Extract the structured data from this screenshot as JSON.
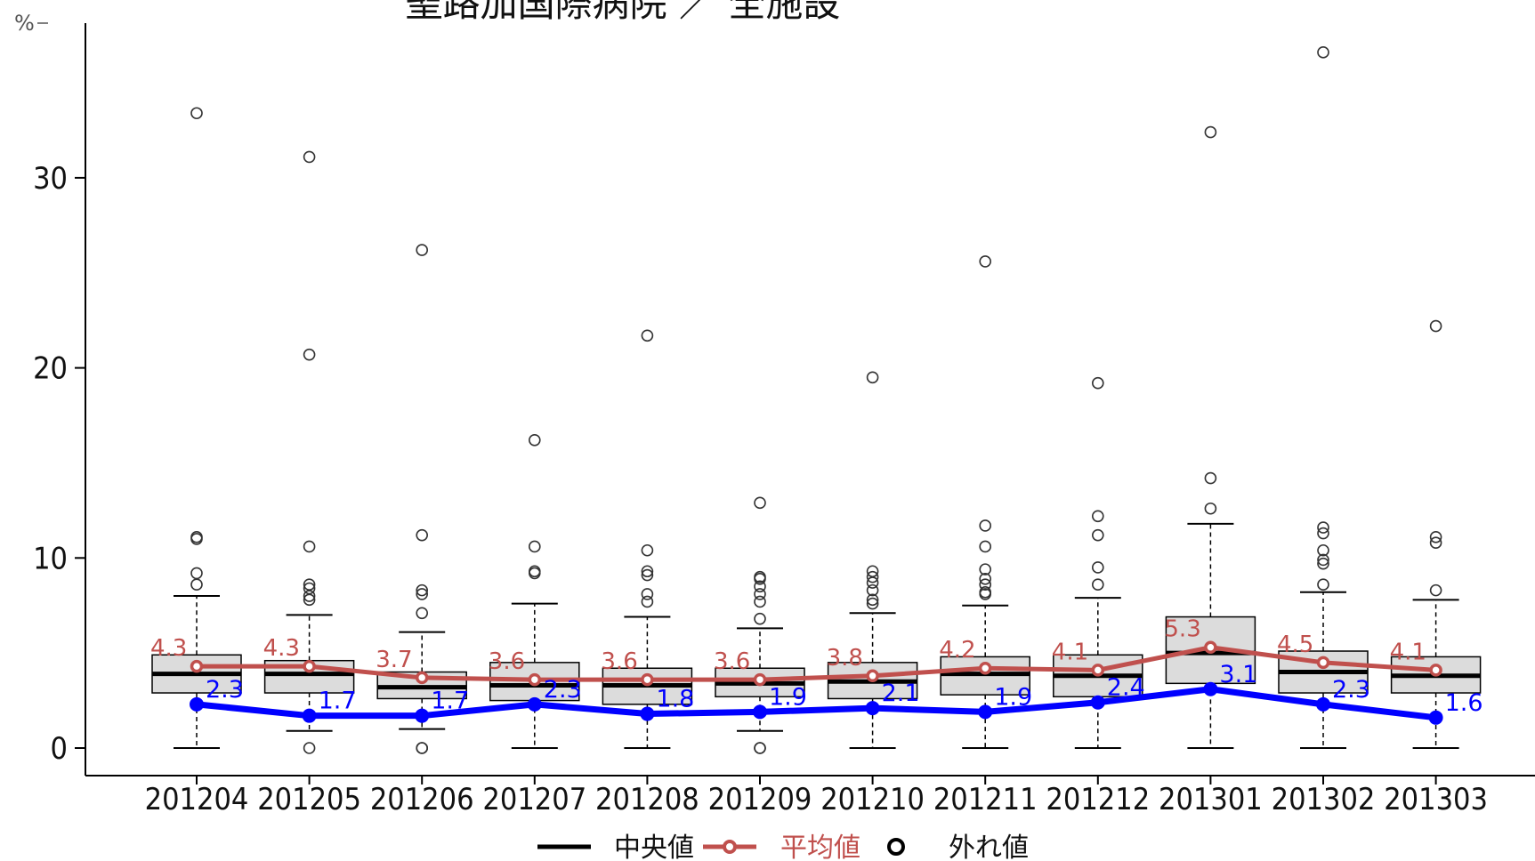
{
  "chart_data": {
    "type": "box",
    "title": "聖路加国際病院 ／ 全施設",
    "unit_label": "%",
    "ylim": [
      -1.5,
      38
    ],
    "yticks": [
      0,
      10,
      20,
      30
    ],
    "categories": [
      "201204",
      "201205",
      "201206",
      "201207",
      "201208",
      "201209",
      "201210",
      "201211",
      "201212",
      "201301",
      "201302",
      "201303"
    ],
    "boxes": [
      {
        "q1": 2.9,
        "median": 3.9,
        "q3": 4.9,
        "wlow": 0.0,
        "whigh": 8.0,
        "outliers": [
          33.4,
          11.1,
          11.0,
          9.2,
          8.6
        ]
      },
      {
        "q1": 2.9,
        "median": 3.9,
        "q3": 4.6,
        "wlow": 0.9,
        "whigh": 7.0,
        "outliers": [
          31.1,
          20.7,
          10.6,
          8.6,
          8.4,
          8.0,
          7.8,
          0.0
        ]
      },
      {
        "q1": 2.6,
        "median": 3.2,
        "q3": 4.0,
        "wlow": 1.0,
        "whigh": 6.1,
        "outliers": [
          26.2,
          11.2,
          8.3,
          8.1,
          7.1,
          0.0,
          0.0
        ]
      },
      {
        "q1": 2.5,
        "median": 3.3,
        "q3": 4.5,
        "wlow": 0.0,
        "whigh": 7.6,
        "outliers": [
          16.2,
          10.6,
          9.3,
          9.2
        ]
      },
      {
        "q1": 2.3,
        "median": 3.3,
        "q3": 4.2,
        "wlow": 0.0,
        "whigh": 6.9,
        "outliers": [
          21.7,
          10.4,
          9.3,
          9.1,
          8.1,
          7.7
        ]
      },
      {
        "q1": 2.7,
        "median": 3.4,
        "q3": 4.2,
        "wlow": 0.9,
        "whigh": 6.3,
        "outliers": [
          12.9,
          9.0,
          8.9,
          8.5,
          8.1,
          7.7,
          6.8,
          0.0,
          0.0
        ]
      },
      {
        "q1": 2.6,
        "median": 3.5,
        "q3": 4.5,
        "wlow": 0.0,
        "whigh": 7.1,
        "outliers": [
          19.5,
          9.3,
          9.0,
          8.7,
          8.3,
          7.8,
          7.6
        ]
      },
      {
        "q1": 2.8,
        "median": 3.9,
        "q3": 4.8,
        "wlow": 0.0,
        "whigh": 7.5,
        "outliers": [
          25.6,
          11.7,
          10.6,
          9.4,
          8.9,
          8.6,
          8.2,
          8.1
        ]
      },
      {
        "q1": 2.7,
        "median": 3.8,
        "q3": 4.9,
        "wlow": 0.0,
        "whigh": 7.9,
        "outliers": [
          19.2,
          12.2,
          11.2,
          9.5,
          8.6
        ]
      },
      {
        "q1": 3.4,
        "median": 5.0,
        "q3": 6.9,
        "wlow": 0.0,
        "whigh": 11.8,
        "outliers": [
          32.4,
          14.2,
          12.6
        ]
      },
      {
        "q1": 2.9,
        "median": 4.0,
        "q3": 5.1,
        "wlow": 0.0,
        "whigh": 8.2,
        "outliers": [
          36.6,
          11.6,
          11.3,
          10.4,
          9.9,
          9.7,
          8.6
        ]
      },
      {
        "q1": 2.9,
        "median": 3.8,
        "q3": 4.8,
        "wlow": 0.0,
        "whigh": 7.8,
        "outliers": [
          22.2,
          11.1,
          10.8,
          8.3
        ]
      }
    ],
    "series": [
      {
        "name": "平均値",
        "values": [
          4.3,
          4.3,
          3.7,
          3.6,
          3.6,
          3.6,
          3.8,
          4.2,
          4.1,
          5.3,
          4.5,
          4.1
        ]
      },
      {
        "values": [
          2.3,
          1.7,
          1.7,
          2.3,
          1.8,
          1.9,
          2.1,
          1.9,
          2.4,
          3.1,
          2.3,
          1.6
        ]
      }
    ],
    "mean_labels": [
      "4.3",
      "4.3",
      "3.7",
      "3.6",
      "3.6",
      "3.6",
      "3.8",
      "4.2",
      "4.1",
      "5.3",
      "4.5",
      "4.1"
    ],
    "hospital_labels": [
      "2.3",
      "1.7",
      "1.7",
      "2.3",
      "1.8",
      "1.9",
      "2.1",
      "1.9",
      "2.4",
      "3.1",
      "2.3",
      "1.6"
    ],
    "legend": [
      {
        "label": "中央値"
      },
      {
        "label": "平均値"
      },
      {
        "label": "外れ値"
      }
    ],
    "legend_position": "bottom",
    "grid": false,
    "colors": {
      "box_fill": "#dcdcdc",
      "median": "#000000",
      "mean": "#c0504d",
      "hospital": "#0000ff",
      "outlier": "#333333",
      "axis": "#000000"
    }
  }
}
